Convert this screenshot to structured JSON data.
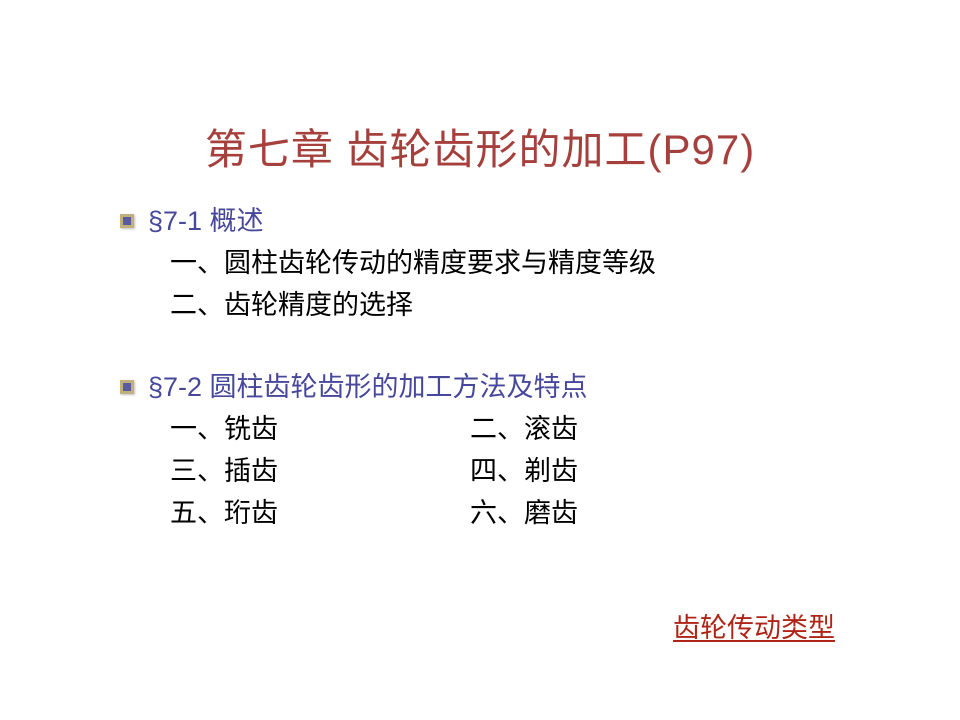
{
  "colors": {
    "title": "#a6403d",
    "section": "#47479c",
    "body": "#000000",
    "link": "#b02418",
    "bullet_outer": "#c0b080",
    "bullet_inner": "#5a5aa0",
    "background": "#ffffff"
  },
  "typography": {
    "title_fontsize": 42,
    "body_fontsize": 27,
    "line_height": 42,
    "font_family": "SimSun / Microsoft YaHei"
  },
  "title": "第七章 齿轮齿形的加工(P97)",
  "sections": [
    {
      "heading": "§7-1 概述",
      "items": [
        "一、圆柱齿轮传动的精度要求与精度等级",
        "二、齿轮精度的选择"
      ]
    },
    {
      "heading": "§7-2 圆柱齿轮齿形的加工方法及特点",
      "rows": [
        {
          "left": "一、铣齿",
          "right": "二、滚齿"
        },
        {
          "left": "三、插齿",
          "right": "四、剃齿"
        },
        {
          "left": "五、珩齿",
          "right": "六、磨齿"
        }
      ]
    }
  ],
  "link_text": "齿轮传动类型"
}
